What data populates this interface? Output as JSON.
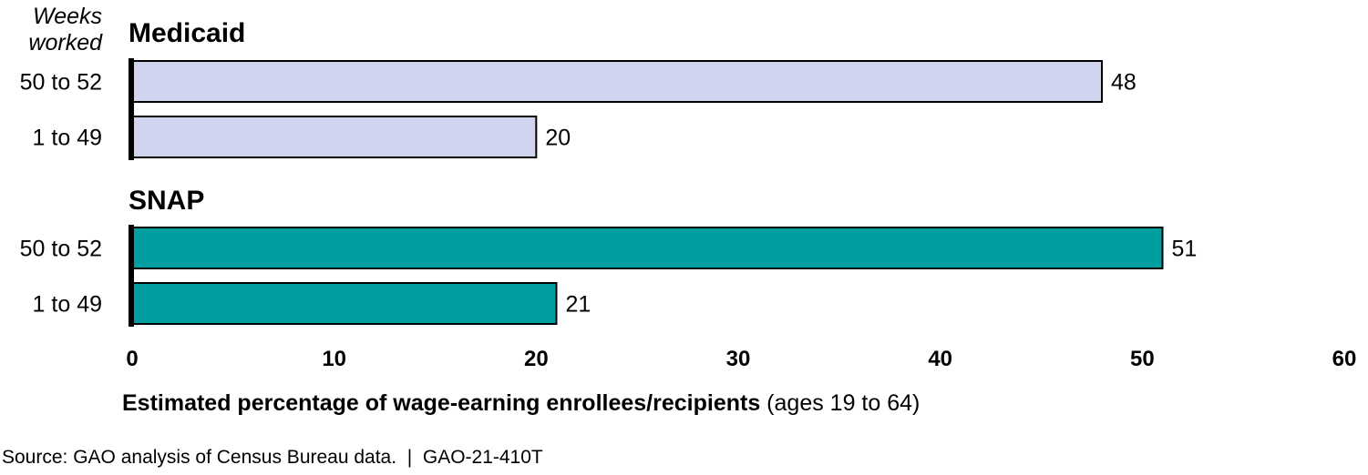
{
  "chart_data": {
    "type": "bar",
    "orientation": "horizontal",
    "header": {
      "line1": "Weeks",
      "line2": "worked"
    },
    "groups": [
      {
        "name": "Medicaid",
        "color": "#d0d4ee",
        "categories": [
          "50 to 52",
          "1 to 49"
        ],
        "values": [
          48,
          20
        ]
      },
      {
        "name": "SNAP",
        "color": "#009e9e",
        "categories": [
          "50 to 52",
          "1 to 49"
        ],
        "values": [
          51,
          21
        ]
      }
    ],
    "xlim": [
      0,
      60
    ],
    "xticks": [
      0,
      10,
      20,
      30,
      40,
      50,
      60
    ],
    "xlabel_bold": "Estimated percentage of wage-earning enrollees/recipients",
    "xlabel_normal": " (ages 19 to 64)",
    "grid": false
  },
  "source": "Source: GAO analysis of Census Bureau data.  |  GAO-21-410T"
}
